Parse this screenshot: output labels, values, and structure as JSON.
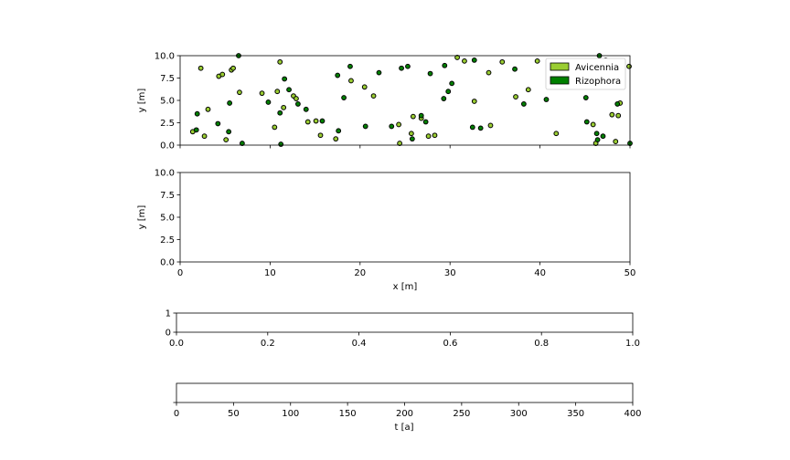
{
  "colors": {
    "avicennia": "#9acd32",
    "rizophora": "#008000",
    "stroke": "#000000"
  },
  "chart_data": [
    {
      "type": "scatter",
      "title": "",
      "xlabel": "",
      "ylabel": "y [m]",
      "xlim": [
        0,
        50
      ],
      "ylim": [
        0,
        10
      ],
      "x_ticks_labeled": false,
      "y_ticks": [
        "0.0",
        "2.5",
        "5.0",
        "7.5",
        "10.0"
      ],
      "legend": {
        "placement": "top-right",
        "entries": [
          {
            "label": "Avicennia",
            "color": "#9acd32"
          },
          {
            "label": "Rizophora",
            "color": "#008000"
          }
        ]
      },
      "series": [
        {
          "name": "Avicennia",
          "color": "#9acd32",
          "points": [
            [
              1.4,
              1.5
            ],
            [
              2.3,
              8.6
            ],
            [
              2.7,
              1.0
            ],
            [
              3.1,
              4.0
            ],
            [
              4.3,
              7.7
            ],
            [
              4.7,
              7.9
            ],
            [
              5.1,
              0.6
            ],
            [
              5.7,
              8.4
            ],
            [
              5.9,
              8.6
            ],
            [
              6.6,
              5.9
            ],
            [
              9.1,
              5.8
            ],
            [
              10.5,
              2.0
            ],
            [
              10.8,
              6.0
            ],
            [
              11.1,
              9.3
            ],
            [
              11.5,
              4.2
            ],
            [
              12.6,
              5.5
            ],
            [
              12.9,
              5.2
            ],
            [
              14.2,
              2.6
            ],
            [
              15.1,
              2.7
            ],
            [
              15.6,
              1.1
            ],
            [
              17.3,
              0.7
            ],
            [
              19.0,
              7.2
            ],
            [
              20.5,
              6.5
            ],
            [
              21.5,
              5.5
            ],
            [
              24.3,
              2.3
            ],
            [
              24.4,
              0.2
            ],
            [
              25.7,
              1.3
            ],
            [
              25.9,
              3.2
            ],
            [
              26.8,
              3.0
            ],
            [
              27.6,
              1.0
            ],
            [
              28.3,
              1.1
            ],
            [
              30.8,
              9.8
            ],
            [
              31.6,
              9.4
            ],
            [
              32.7,
              4.9
            ],
            [
              34.3,
              8.1
            ],
            [
              34.5,
              2.2
            ],
            [
              35.8,
              9.3
            ],
            [
              37.3,
              5.4
            ],
            [
              38.7,
              6.2
            ],
            [
              39.7,
              9.4
            ],
            [
              41.1,
              9.3
            ],
            [
              41.8,
              1.3
            ],
            [
              45.9,
              2.3
            ],
            [
              46.2,
              0.2
            ],
            [
              47.3,
              9.5
            ],
            [
              48.0,
              3.4
            ],
            [
              48.4,
              0.4
            ],
            [
              48.7,
              3.3
            ],
            [
              48.9,
              4.7
            ],
            [
              49.9,
              8.8
            ]
          ]
        },
        {
          "name": "Rizophora",
          "color": "#008000",
          "points": [
            [
              1.8,
              1.7
            ],
            [
              1.9,
              3.5
            ],
            [
              4.2,
              2.4
            ],
            [
              5.4,
              1.5
            ],
            [
              5.5,
              4.7
            ],
            [
              6.5,
              10.0
            ],
            [
              6.9,
              0.2
            ],
            [
              9.8,
              4.8
            ],
            [
              11.1,
              3.6
            ],
            [
              11.2,
              0.1
            ],
            [
              11.6,
              7.4
            ],
            [
              12.1,
              6.2
            ],
            [
              13.1,
              4.6
            ],
            [
              14.0,
              4.0
            ],
            [
              15.8,
              2.7
            ],
            [
              17.5,
              7.8
            ],
            [
              17.6,
              1.6
            ],
            [
              18.2,
              5.3
            ],
            [
              18.9,
              8.8
            ],
            [
              20.6,
              2.1
            ],
            [
              22.1,
              8.1
            ],
            [
              23.5,
              2.1
            ],
            [
              24.6,
              8.6
            ],
            [
              25.3,
              8.8
            ],
            [
              25.8,
              0.7
            ],
            [
              26.8,
              3.3
            ],
            [
              27.3,
              2.6
            ],
            [
              27.8,
              8.0
            ],
            [
              29.3,
              5.2
            ],
            [
              29.4,
              8.9
            ],
            [
              29.8,
              6.0
            ],
            [
              30.2,
              6.9
            ],
            [
              32.5,
              2.0
            ],
            [
              32.7,
              9.5
            ],
            [
              33.4,
              1.9
            ],
            [
              37.2,
              8.5
            ],
            [
              38.2,
              4.6
            ],
            [
              40.7,
              5.1
            ],
            [
              45.1,
              5.3
            ],
            [
              45.2,
              2.6
            ],
            [
              46.3,
              1.3
            ],
            [
              46.4,
              0.6
            ],
            [
              46.6,
              10.0
            ],
            [
              47.0,
              1.0
            ],
            [
              48.6,
              4.6
            ],
            [
              50.0,
              0.2
            ]
          ]
        }
      ]
    },
    {
      "type": "scatter",
      "title": "",
      "xlabel": "x [m]",
      "ylabel": "y [m]",
      "xlim": [
        0,
        50
      ],
      "ylim": [
        0,
        10
      ],
      "x_ticks": [
        "0",
        "10",
        "20",
        "30",
        "40",
        "50"
      ],
      "y_ticks": [
        "0.0",
        "2.5",
        "5.0",
        "7.5",
        "10.0"
      ],
      "series": []
    },
    {
      "type": "line",
      "title": "",
      "xlabel": "",
      "ylabel": "",
      "xlim": [
        0,
        1
      ],
      "ylim": [
        0,
        1
      ],
      "x_ticks": [
        "0.0",
        "0.2",
        "0.4",
        "0.6",
        "0.8",
        "1.0"
      ],
      "y_ticks": [
        "0",
        "1"
      ],
      "series": []
    },
    {
      "type": "line",
      "title": "",
      "xlabel": "t [a]",
      "ylabel": "",
      "xlim": [
        0,
        400
      ],
      "x_ticks": [
        "0",
        "50",
        "100",
        "150",
        "200",
        "250",
        "300",
        "350",
        "400"
      ],
      "y_ticks": [],
      "series": []
    }
  ]
}
